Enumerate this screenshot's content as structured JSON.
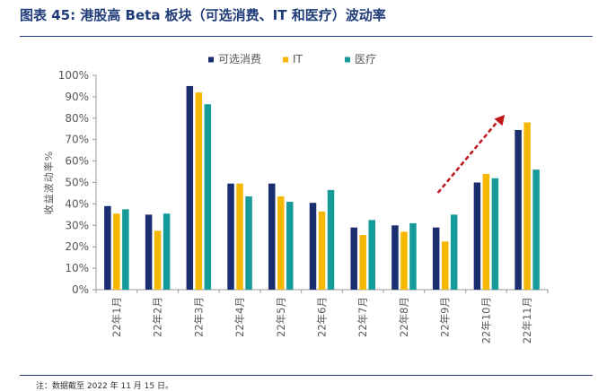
{
  "figure": {
    "title": "图表 45: 港股高 Beta 板块（可选消费、IT 和医疗）波动率",
    "footnote": "注：数据截至 2022 年 11 月 15 日。"
  },
  "colors": {
    "可选消费": "#1a2d6e",
    "IT": "#f6b700",
    "医疗": "#159b99",
    "trend_arrow": "#c0171a"
  },
  "chart_data": {
    "type": "bar",
    "title": "",
    "xlabel": "",
    "ylabel": "收益波动率%",
    "ylim": [
      0,
      100
    ],
    "yticks": [
      "0%",
      "10%",
      "20%",
      "30%",
      "40%",
      "50%",
      "60%",
      "70%",
      "80%",
      "90%",
      "100%"
    ],
    "legend_position": "top-center",
    "grid": false,
    "categories": [
      "22年1月",
      "22年2月",
      "22年3月",
      "22年4月",
      "22年5月",
      "22年6月",
      "22年7月",
      "22年8月",
      "22年9月",
      "22年10月",
      "22年11月"
    ],
    "series": [
      {
        "name": "可选消费",
        "values": [
          39,
          35,
          95,
          49.5,
          49.5,
          40.5,
          29,
          30,
          29,
          50,
          74.5
        ]
      },
      {
        "name": "IT",
        "values": [
          35.5,
          27.5,
          92,
          49.5,
          43.5,
          36.5,
          25.5,
          27,
          22.5,
          54,
          78
        ]
      },
      {
        "name": "医疗",
        "values": [
          37.5,
          35.5,
          86.5,
          43.5,
          41,
          46.5,
          32.5,
          31,
          35,
          52,
          56
        ]
      }
    ],
    "annotations": [
      {
        "type": "trend-arrow",
        "from_category": "22年9月",
        "to_category": "22年11月",
        "note": "upward trend"
      }
    ]
  }
}
